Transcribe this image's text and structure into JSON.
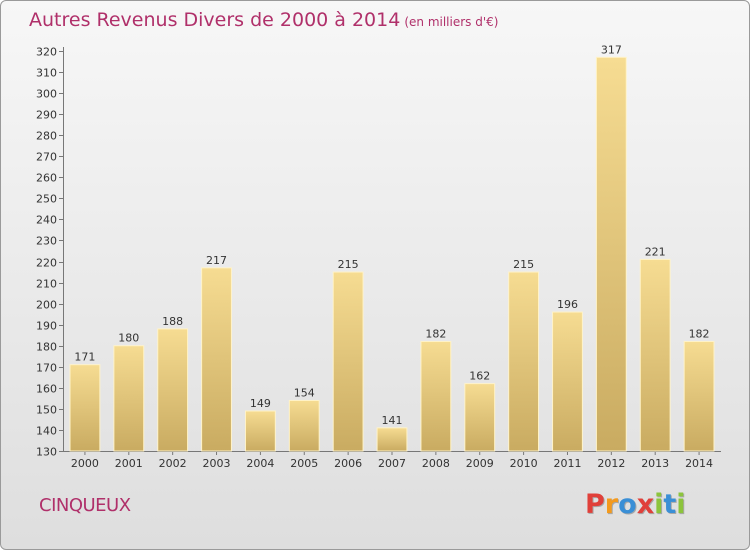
{
  "header": {
    "title": "Autres Revenus Divers de 2000 à 2014",
    "unit_note": "(en milliers d'€)"
  },
  "footer": {
    "location": "CINQUEUX",
    "brand": "Proxiti"
  },
  "colors": {
    "title": "#b0306a",
    "bar_top": "#f6dc92",
    "bar_bottom": "#c9ab61",
    "brand_letters": [
      "#e0403a",
      "#f39a1e",
      "#3a8fd6",
      "#e0403a",
      "#8cc43c",
      "#3a8fd6",
      "#8cc43c"
    ]
  },
  "chart_data": {
    "type": "bar",
    "title": "Autres Revenus Divers de 2000 à 2014",
    "subtitle": "(en milliers d'€)",
    "xlabel": "",
    "ylabel": "",
    "categories": [
      "2000",
      "2001",
      "2002",
      "2003",
      "2004",
      "2005",
      "2006",
      "2007",
      "2008",
      "2009",
      "2010",
      "2011",
      "2012",
      "2013",
      "2014"
    ],
    "values": [
      171,
      180,
      188,
      217,
      149,
      154,
      215,
      141,
      182,
      162,
      215,
      196,
      317,
      221,
      182
    ],
    "ylim": [
      130,
      320
    ],
    "yticks": [
      130,
      140,
      150,
      160,
      170,
      180,
      190,
      200,
      210,
      220,
      230,
      240,
      250,
      260,
      270,
      280,
      290,
      300,
      310,
      320
    ],
    "grid": false,
    "legend": "none",
    "data_labels": true
  }
}
